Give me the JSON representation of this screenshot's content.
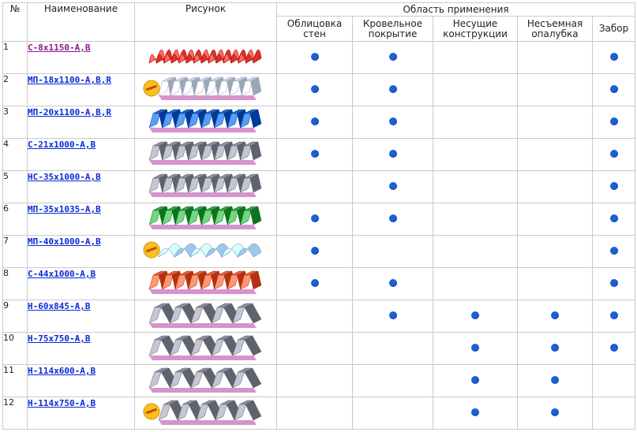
{
  "header": {
    "num": "№",
    "name": "Наименование",
    "picture": "Рисунок",
    "area": "Область применения",
    "cols": [
      "Облицовка стен",
      "Кровельное покрытие",
      "Несущие конструкции",
      "Несъемная опалубка",
      "Забор"
    ]
  },
  "rows": [
    {
      "num": "1",
      "name": "С-8х1150-А,В",
      "visited": true,
      "color": "#d9342b",
      "style": "wave",
      "badge": false,
      "marks": [
        true,
        true,
        false,
        false,
        true
      ]
    },
    {
      "num": "2",
      "name": "МП-18х1100-А,В,R",
      "visited": false,
      "color": "#c8d4e6",
      "style": "trap",
      "badge": true,
      "marks": [
        true,
        true,
        false,
        false,
        true
      ]
    },
    {
      "num": "3",
      "name": "МП-20х1100-А,В,R",
      "visited": false,
      "color": "#1f67c2",
      "style": "trap",
      "badge": false,
      "marks": [
        true,
        true,
        false,
        false,
        true
      ]
    },
    {
      "num": "4",
      "name": "С-21х1000-А,В",
      "visited": false,
      "color": "#8d8f9a",
      "style": "trap",
      "badge": false,
      "marks": [
        true,
        true,
        false,
        false,
        true
      ]
    },
    {
      "num": "5",
      "name": "НС-35х1000-А,В",
      "visited": false,
      "color": "#8d8f9a",
      "style": "trap",
      "badge": false,
      "marks": [
        false,
        true,
        false,
        false,
        true
      ]
    },
    {
      "num": "6",
      "name": "МП-35х1035-А,В",
      "visited": false,
      "color": "#3aa14a",
      "style": "trap",
      "badge": false,
      "marks": [
        true,
        true,
        false,
        false,
        true
      ]
    },
    {
      "num": "7",
      "name": "МП-40х1000-А,В",
      "visited": false,
      "color": "#9ec7ec",
      "style": "round",
      "badge": true,
      "marks": [
        true,
        false,
        false,
        false,
        true
      ]
    },
    {
      "num": "8",
      "name": "С-44х1000-А,В",
      "visited": false,
      "color": "#e0603d",
      "style": "trap",
      "badge": false,
      "marks": [
        true,
        true,
        false,
        false,
        true
      ]
    },
    {
      "num": "9",
      "name": "Н-60х845-А,В",
      "visited": false,
      "color": "#8d8f9a",
      "style": "deep",
      "badge": false,
      "marks": [
        false,
        true,
        true,
        true,
        true
      ]
    },
    {
      "num": "10",
      "name": "Н-75х750-А,В",
      "visited": false,
      "color": "#8d8f9a",
      "style": "deep",
      "badge": false,
      "marks": [
        false,
        false,
        true,
        true,
        true
      ]
    },
    {
      "num": "11",
      "name": "Н-114х600-А,В",
      "visited": false,
      "color": "#8d8f9a",
      "style": "deep",
      "badge": false,
      "marks": [
        false,
        false,
        true,
        true,
        false
      ]
    },
    {
      "num": "12",
      "name": "Н-114х750-А,В",
      "visited": false,
      "color": "#8d8f9a",
      "style": "deep",
      "badge": true,
      "marks": [
        false,
        false,
        true,
        true,
        false
      ]
    }
  ],
  "colors": {
    "dot": "#1e5fd6",
    "link": "#0a2ad6",
    "visited": "#8a1a8a",
    "underside": "#b53aa8"
  }
}
